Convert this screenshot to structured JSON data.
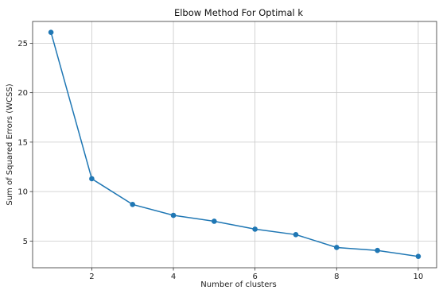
{
  "chart_data": {
    "type": "line",
    "title": "Elbow Method For Optimal k",
    "xlabel": "Number of clusters",
    "ylabel": "Sum of Squared Errors (WCSS)",
    "x": [
      1,
      2,
      3,
      4,
      5,
      6,
      7,
      8,
      9,
      10
    ],
    "series": [
      {
        "values": [
          26.1,
          11.3,
          8.7,
          7.6,
          7.0,
          6.2,
          5.65,
          4.35,
          4.05,
          3.45
        ]
      }
    ],
    "xticks": [
      2,
      4,
      6,
      8,
      10
    ],
    "yticks": [
      5,
      10,
      15,
      20,
      25
    ],
    "xlim": [
      0.55,
      10.45
    ],
    "ylim": [
      2.3,
      27.2
    ],
    "grid": true,
    "line_color": "#1f77b4",
    "marker": "circle"
  }
}
